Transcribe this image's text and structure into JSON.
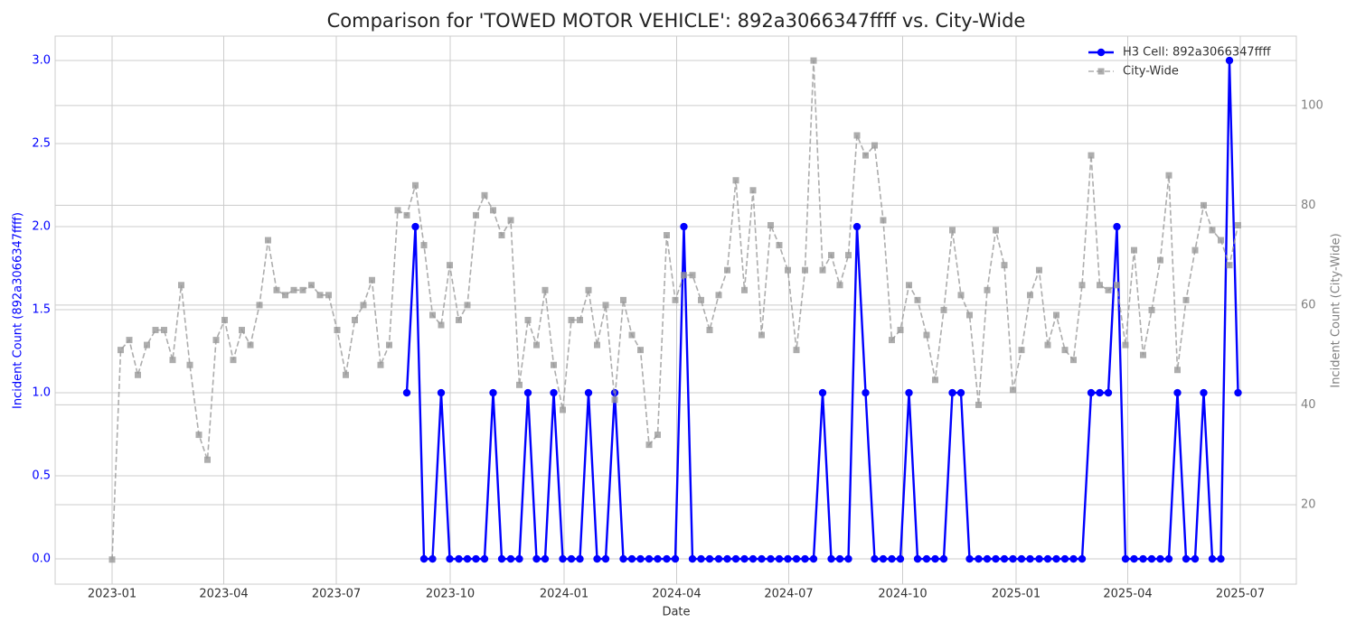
{
  "chart_data": {
    "type": "line",
    "title": "Comparison for 'TOWED MOTOR VEHICLE': 892a3066347ffff vs. City-Wide",
    "x_label": "Date",
    "y_label": "Incident Count (892a3066347ffff)",
    "y2_label": "Incident Count (City-Wide)",
    "x": [
      2023.0,
      2023.019,
      2023.038,
      2023.057,
      2023.077,
      2023.096,
      2023.115,
      2023.134,
      2023.153,
      2023.172,
      2023.192,
      2023.211,
      2023.23,
      2023.249,
      2023.268,
      2023.287,
      2023.306,
      2023.326,
      2023.345,
      2023.364,
      2023.383,
      2023.402,
      2023.422,
      2023.441,
      2023.46,
      2023.479,
      2023.498,
      2023.517,
      2023.537,
      2023.556,
      2023.575,
      2023.594,
      2023.613,
      2023.632,
      2023.652,
      2023.671,
      2023.69,
      2023.709,
      2023.728,
      2023.747,
      2023.767,
      2023.786,
      2023.805,
      2023.824,
      2023.843,
      2023.862,
      2023.882,
      2023.901,
      2023.92,
      2023.939,
      2023.958,
      2023.977,
      2023.997,
      2024.016,
      2024.035,
      2024.054,
      2024.073,
      2024.092,
      2024.112,
      2024.131,
      2024.15,
      2024.169,
      2024.188,
      2024.207,
      2024.227,
      2024.246,
      2024.265,
      2024.284,
      2024.303,
      2024.322,
      2024.342,
      2024.361,
      2024.38,
      2024.399,
      2024.418,
      2024.437,
      2024.457,
      2024.476,
      2024.495,
      2024.514,
      2024.533,
      2024.552,
      2024.572,
      2024.591,
      2024.61,
      2024.629,
      2024.648,
      2024.667,
      2024.687,
      2024.706,
      2024.725,
      2024.744,
      2024.763,
      2024.782,
      2024.802,
      2024.821,
      2024.84,
      2024.859,
      2024.878,
      2024.897,
      2024.917,
      2024.936,
      2024.955,
      2024.974,
      2024.993,
      2025.012,
      2025.031,
      2025.051,
      2025.07,
      2025.089,
      2025.108,
      2025.127,
      2025.146,
      2025.166,
      2025.185,
      2025.204,
      2025.223,
      2025.242,
      2025.261,
      2025.281,
      2025.3,
      2025.319,
      2025.338,
      2025.357,
      2025.376,
      2025.396,
      2025.415,
      2025.434,
      2025.453,
      2025.472,
      2025.491
    ],
    "xlim": [
      2022.874,
      2025.62
    ],
    "xticks": [
      {
        "value": 2023.0,
        "label": "2023-01"
      },
      {
        "value": 2023.247,
        "label": "2023-04"
      },
      {
        "value": 2023.496,
        "label": "2023-07"
      },
      {
        "value": 2023.748,
        "label": "2023-10"
      },
      {
        "value": 2024.0,
        "label": "2024-01"
      },
      {
        "value": 2024.249,
        "label": "2024-04"
      },
      {
        "value": 2024.497,
        "label": "2024-07"
      },
      {
        "value": 2024.749,
        "label": "2024-10"
      },
      {
        "value": 2025.0,
        "label": "2025-01"
      },
      {
        "value": 2025.247,
        "label": "2025-04"
      },
      {
        "value": 2025.496,
        "label": "2025-07"
      }
    ],
    "ylim": [
      -0.152,
      3.147
    ],
    "yticks": [
      {
        "value": 0,
        "label": "0.0"
      },
      {
        "value": 0.5,
        "label": "0.5"
      },
      {
        "value": 1,
        "label": "1.0"
      },
      {
        "value": 1.5,
        "label": "1.5"
      },
      {
        "value": 2,
        "label": "2.0"
      },
      {
        "value": 2.5,
        "label": "2.5"
      },
      {
        "value": 3,
        "label": "3.0"
      }
    ],
    "y2lim": [
      4.07,
      113.9
    ],
    "y2ticks": [
      20,
      40,
      60,
      80,
      100
    ],
    "grid": true,
    "legend": "upper right",
    "series": [
      {
        "name": "H3 Cell: 892a3066347ffff",
        "color": "#0000ff",
        "marker": "circle",
        "linestyle": "solid",
        "values": [
          null,
          null,
          null,
          null,
          null,
          null,
          null,
          null,
          null,
          null,
          null,
          null,
          null,
          null,
          null,
          null,
          null,
          null,
          null,
          null,
          null,
          null,
          null,
          null,
          null,
          null,
          null,
          null,
          null,
          null,
          null,
          null,
          null,
          null,
          1,
          2,
          0,
          0,
          1,
          0,
          0,
          0,
          0,
          0,
          1,
          0,
          0,
          0,
          1,
          0,
          0,
          1,
          0,
          0,
          0,
          1,
          0,
          0,
          1,
          0,
          0,
          0,
          0,
          0,
          0,
          0,
          2,
          0,
          0,
          0,
          0,
          0,
          0,
          0,
          0,
          0,
          0,
          0,
          0,
          0,
          0,
          0,
          1,
          0,
          0,
          0,
          2,
          1,
          0,
          0,
          0,
          0,
          1,
          0,
          0,
          0,
          0,
          1,
          1,
          0,
          0,
          0,
          0,
          0,
          0,
          0,
          0,
          0,
          0,
          0,
          0,
          0,
          0,
          1,
          1,
          1,
          2,
          0,
          0,
          0,
          0,
          0,
          0,
          1,
          0,
          0,
          1,
          0,
          0,
          3,
          1
        ]
      },
      {
        "name": "City-Wide",
        "color": "#999999",
        "marker": "square",
        "linestyle": "dashed",
        "axis": "y2",
        "values": [
          9,
          51,
          53,
          46,
          52,
          55,
          55,
          49,
          64,
          48,
          34,
          29,
          53,
          57,
          49,
          55,
          52,
          60,
          73,
          63,
          62,
          63,
          63,
          64,
          62,
          62,
          55,
          46,
          57,
          60,
          65,
          48,
          52,
          79,
          78,
          84,
          72,
          58,
          56,
          68,
          57,
          60,
          78,
          82,
          79,
          74,
          77,
          44,
          57,
          52,
          63,
          48,
          39,
          57,
          57,
          63,
          52,
          60,
          41,
          61,
          54,
          51,
          32,
          34,
          74,
          61,
          66,
          66,
          61,
          55,
          62,
          67,
          85,
          63,
          83,
          54,
          76,
          72,
          67,
          51,
          67,
          109,
          67,
          70,
          64,
          70,
          94,
          90,
          92,
          77,
          53,
          55,
          64,
          61,
          54,
          45,
          59,
          75,
          62,
          58,
          40,
          63,
          75,
          68,
          43,
          51,
          62,
          67,
          52,
          58,
          51,
          49,
          64,
          90,
          64,
          63,
          64,
          52,
          71,
          50,
          59,
          69,
          86,
          47,
          61,
          71,
          80,
          75,
          73,
          68,
          76
        ]
      }
    ]
  }
}
